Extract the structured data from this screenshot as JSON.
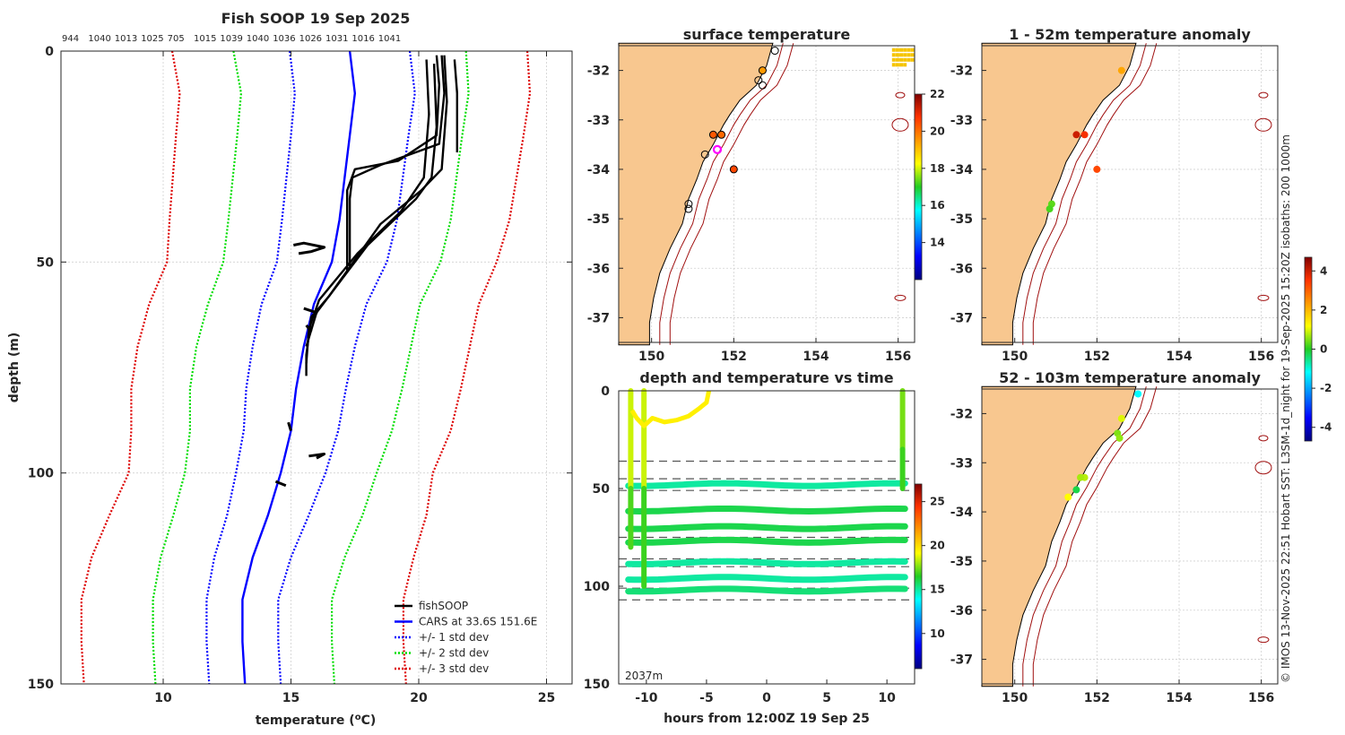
{
  "chart_data": [
    {
      "type": "line",
      "title": "Fish SOOP 19 Sep 2025",
      "top_labels": [
        "944",
        "1040",
        "1013",
        "1025",
        "705",
        "1015",
        "1039",
        "1040",
        "1036",
        "1026",
        "1031",
        "1016",
        "1041"
      ],
      "xlabel": "temperature (°C)",
      "ylabel": "depth (m)",
      "xlim": [
        6,
        26
      ],
      "ylim": [
        150,
        0
      ],
      "xticks": [
        "10",
        "15",
        "20",
        "25"
      ],
      "yticks": [
        "0",
        "50",
        "100",
        "150"
      ],
      "legend": [
        {
          "label": "fishSOOP",
          "color": "#000000",
          "style": "solid"
        },
        {
          "label": "CARS at 33.6S 151.6E",
          "color": "#0000ff",
          "style": "solid"
        },
        {
          "label": "+/- 1 std dev",
          "color": "#0000ff",
          "style": "dotted"
        },
        {
          "label": "+/- 2 std dev",
          "color": "#00dd00",
          "style": "dotted"
        },
        {
          "label": "+/- 3 std dev",
          "color": "#dd0000",
          "style": "dotted"
        }
      ],
      "depths": [
        0,
        10,
        20,
        40,
        50,
        60,
        70,
        80,
        90,
        100,
        110,
        120,
        130,
        140,
        150
      ],
      "cars_mean": [
        17.3,
        17.5,
        17.3,
        16.9,
        16.6,
        15.9,
        15.5,
        15.2,
        15.0,
        14.6,
        14.1,
        13.5,
        13.1,
        13.1,
        13.2
      ],
      "std_1": [
        4.7,
        4.7,
        4.6,
        4.5,
        4.3,
        4.1,
        4.0,
        3.9,
        3.7,
        3.5,
        3.2,
        3.0,
        2.8,
        2.8,
        2.8
      ],
      "std_2": [
        2.2,
        2.1,
        2.1,
        2.1,
        2.1,
        2.1,
        2.2,
        2.2,
        2.1,
        2.0,
        2.1,
        2.1,
        2.1,
        2.1,
        2.1
      ],
      "std_3": [
        2.4,
        2.4,
        2.4,
        2.3,
        2.2,
        2.3,
        2.3,
        2.3,
        2.3,
        2.2,
        2.5,
        2.7,
        2.8,
        2.8,
        2.8
      ],
      "fish_profiles": [
        [
          [
            20.7,
            1
          ],
          [
            20.8,
            8
          ],
          [
            20.7,
            20
          ],
          [
            19.2,
            26
          ],
          [
            17.5,
            28
          ],
          [
            17.2,
            33
          ],
          [
            17.2,
            52
          ]
        ],
        [
          [
            20.9,
            1
          ],
          [
            21.0,
            10
          ],
          [
            20.8,
            22
          ],
          [
            18.5,
            27
          ],
          [
            17.4,
            30
          ],
          [
            17.3,
            35
          ],
          [
            17.3,
            51
          ]
        ],
        [
          [
            21.0,
            1
          ],
          [
            21.1,
            12
          ],
          [
            20.9,
            28
          ],
          [
            20.1,
            33
          ],
          [
            18.5,
            41
          ],
          [
            16.5,
            58
          ],
          [
            15.8,
            63
          ],
          [
            15.6,
            72
          ],
          [
            15.6,
            77
          ]
        ],
        [
          [
            20.3,
            2
          ],
          [
            20.4,
            15
          ],
          [
            20.2,
            30
          ],
          [
            19.3,
            38
          ],
          [
            17.6,
            48
          ],
          [
            16.1,
            59
          ],
          [
            15.7,
            66
          ],
          [
            15.6,
            74
          ]
        ],
        [
          [
            20.6,
            3
          ],
          [
            20.7,
            18
          ],
          [
            20.5,
            30
          ],
          [
            19.9,
            35
          ],
          [
            18.0,
            46
          ],
          [
            16.0,
            62
          ],
          [
            15.6,
            70
          ]
        ],
        [
          [
            21.4,
            2
          ],
          [
            21.5,
            10
          ],
          [
            21.5,
            24
          ]
        ]
      ],
      "fish_fragments": [
        [
          [
            15.1,
            46
          ],
          [
            15.5,
            45.5
          ],
          [
            16.3,
            46.5
          ],
          [
            15.8,
            47.5
          ],
          [
            15.3,
            48
          ]
        ],
        [
          [
            15.5,
            61
          ],
          [
            16.0,
            62
          ],
          [
            15.8,
            63
          ]
        ],
        [
          [
            15.6,
            65
          ],
          [
            15.8,
            66.5
          ]
        ],
        [
          [
            14.9,
            88
          ],
          [
            15.0,
            90
          ]
        ],
        [
          [
            15.7,
            96
          ],
          [
            16.3,
            95.5
          ],
          [
            16.0,
            96.5
          ]
        ],
        [
          [
            14.4,
            102
          ],
          [
            14.8,
            103
          ]
        ]
      ]
    },
    {
      "type": "scatter",
      "title": "surface temperature",
      "xticks": [
        "150",
        "152",
        "154",
        "156"
      ],
      "yticks": [
        "-32",
        "-33",
        "-34",
        "-35",
        "-36",
        "-37"
      ],
      "xlim": [
        149.2,
        156.4
      ],
      "ylim": [
        -37.5,
        -31.5
      ],
      "colorbar_ticks": [
        "22",
        "20",
        "18",
        "16",
        "14"
      ],
      "colorbar_range": [
        12,
        22
      ],
      "points": [
        {
          "lon": 153.0,
          "lat": -31.6,
          "temp": null
        },
        {
          "lon": 152.7,
          "lat": -32.0,
          "temp": 19.5
        },
        {
          "lon": 152.6,
          "lat": -32.2,
          "temp": null
        },
        {
          "lon": 152.7,
          "lat": -32.3,
          "temp": null
        },
        {
          "lon": 151.5,
          "lat": -33.3,
          "temp": 20.3
        },
        {
          "lon": 151.7,
          "lat": -33.3,
          "temp": 20.1
        },
        {
          "lon": 151.6,
          "lat": -33.6,
          "temp": null,
          "highlight": true
        },
        {
          "lon": 151.3,
          "lat": -33.7,
          "temp": null
        },
        {
          "lon": 152.0,
          "lat": -34.0,
          "temp": 20.5
        },
        {
          "lon": 150.9,
          "lat": -34.7,
          "temp": null
        },
        {
          "lon": 150.9,
          "lat": -34.8,
          "temp": null
        }
      ]
    },
    {
      "type": "scatter",
      "title": "1 - 52m temperature anomaly",
      "xticks": [
        "150",
        "152",
        "154",
        "156"
      ],
      "yticks": [
        "-32",
        "-33",
        "-34",
        "-35",
        "-36",
        "-37"
      ],
      "xlim": [
        149.2,
        156.4
      ],
      "ylim": [
        -37.5,
        -31.5
      ],
      "points": [
        {
          "lon": 152.6,
          "lat": -32.0,
          "anom": 2.2
        },
        {
          "lon": 151.5,
          "lat": -33.3,
          "anom": 4.0
        },
        {
          "lon": 151.7,
          "lat": -33.3,
          "anom": 3.6
        },
        {
          "lon": 152.0,
          "lat": -34.0,
          "anom": 3.3
        },
        {
          "lon": 150.9,
          "lat": -34.7,
          "anom": 0.3
        },
        {
          "lon": 150.85,
          "lat": -34.8,
          "anom": 0.2
        }
      ]
    },
    {
      "type": "scatter",
      "title": "depth and temperature vs time",
      "xlabel": "hours from 12:00Z 19 Sep 25",
      "xticks": [
        "-10",
        "-5",
        "0",
        "5",
        "10"
      ],
      "yticks": [
        "0",
        "50",
        "100",
        "150"
      ],
      "xlim": [
        -12.3,
        12.3
      ],
      "ylim": [
        150,
        0
      ],
      "annotation": "2037m",
      "colorbar_ticks": [
        "25",
        "20",
        "15",
        "10"
      ],
      "colorbar_range": [
        6,
        27
      ],
      "dashed_depths": [
        36,
        45,
        51,
        75,
        86,
        90,
        101,
        107
      ],
      "bands": [
        {
          "depth": 48,
          "temp": 15.0
        },
        {
          "depth": 61,
          "temp": 16.0
        },
        {
          "depth": 70,
          "temp": 16.0
        },
        {
          "depth": 77,
          "temp": 16.0
        },
        {
          "depth": 88,
          "temp": 15.0
        },
        {
          "depth": 96,
          "temp": 15.0
        },
        {
          "depth": 102,
          "temp": 15.5
        }
      ]
    },
    {
      "type": "scatter",
      "title": "52 - 103m temperature anomaly",
      "xticks": [
        "150",
        "152",
        "154",
        "156"
      ],
      "yticks": [
        "-32",
        "-33",
        "-34",
        "-35",
        "-36",
        "-37"
      ],
      "xlim": [
        149.2,
        156.4
      ],
      "ylim": [
        -37.5,
        -31.5
      ],
      "colorbar_ticks": [
        "4",
        "2",
        "0",
        "-2",
        "-4"
      ],
      "colorbar_range": [
        -4.7,
        4.7
      ],
      "points": [
        {
          "lon": 153.0,
          "lat": -31.6,
          "anom": -1.2
        },
        {
          "lon": 152.6,
          "lat": -32.1,
          "anom": 1.0
        },
        {
          "lon": 152.5,
          "lat": -32.4,
          "anom": 0.5
        },
        {
          "lon": 152.55,
          "lat": -32.5,
          "anom": 0.6
        },
        {
          "lon": 151.7,
          "lat": -33.3,
          "anom": 0.8
        },
        {
          "lon": 151.6,
          "lat": -33.3,
          "anom": 0.7
        },
        {
          "lon": 151.5,
          "lat": -33.55,
          "anom": -0.2
        },
        {
          "lon": 151.3,
          "lat": -33.7,
          "anom": 1.2
        }
      ]
    }
  ],
  "footer": {
    "credit": "© IMOS 13-Nov-2025 22:51 Hobart SST: L3SM-1d_night for 19-Sep-2025 15:20Z isobaths: 200  1000m"
  }
}
